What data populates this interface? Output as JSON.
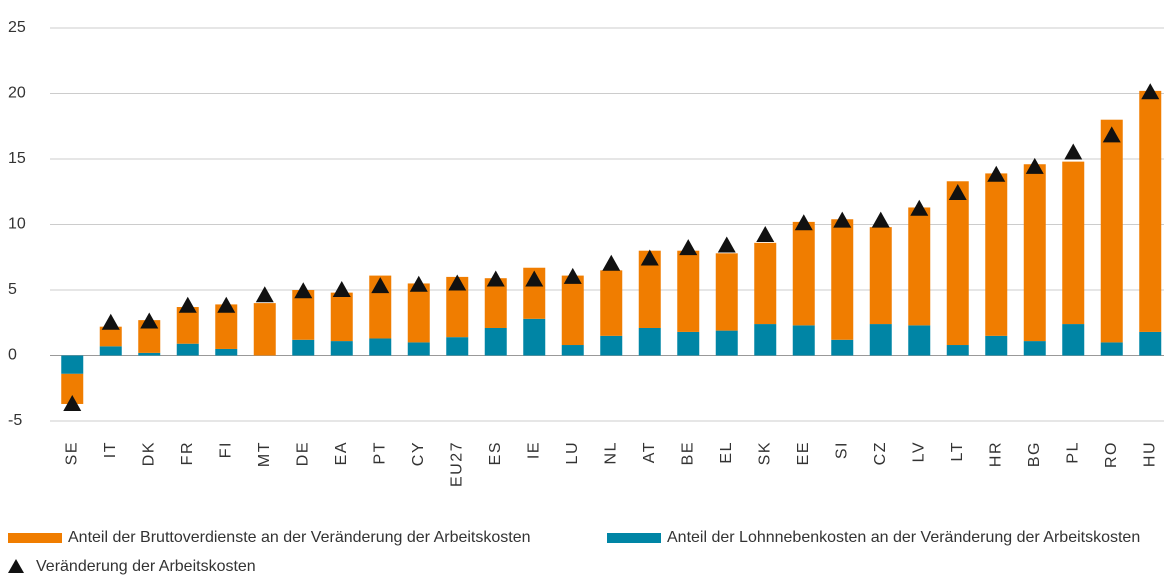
{
  "chart_data": {
    "type": "bar",
    "categories": [
      "SE",
      "IT",
      "DK",
      "FR",
      "FI",
      "MT",
      "DE",
      "EA",
      "PT",
      "CY",
      "EU27",
      "ES",
      "IE",
      "LU",
      "NL",
      "AT",
      "BE",
      "EL",
      "SK",
      "EE",
      "SI",
      "CZ",
      "LV",
      "LT",
      "HR",
      "BG",
      "PL",
      "RO",
      "HU"
    ],
    "series": [
      {
        "name": "Anteil der Bruttoverdienste an der Veränderung der Arbeitskosten",
        "type": "bar",
        "color": "#f07d00",
        "values": [
          -2.3,
          1.5,
          2.5,
          2.8,
          3.4,
          4.0,
          3.8,
          3.7,
          4.8,
          4.5,
          4.6,
          3.8,
          3.9,
          5.3,
          5.0,
          5.9,
          6.2,
          5.9,
          6.2,
          7.9,
          9.2,
          7.4,
          9.0,
          12.5,
          12.4,
          13.5,
          12.4,
          17.0,
          18.4
        ]
      },
      {
        "name": "Anteil der Lohnnebenkosten an der Veränderung der Arbeitskosten",
        "type": "bar",
        "color": "#0085a5",
        "values": [
          -1.4,
          0.7,
          0.2,
          0.9,
          0.5,
          0.0,
          1.2,
          1.1,
          1.3,
          1.0,
          1.4,
          2.1,
          2.8,
          0.8,
          1.5,
          2.1,
          1.8,
          1.9,
          2.4,
          2.3,
          1.2,
          2.4,
          2.3,
          0.8,
          1.5,
          1.1,
          2.4,
          1.0,
          1.8
        ]
      },
      {
        "name": "Veränderung der Arbeitskosten",
        "type": "marker",
        "color": "#111111",
        "values": [
          -3.7,
          2.5,
          2.6,
          3.8,
          3.8,
          4.6,
          4.9,
          5.0,
          5.3,
          5.4,
          5.5,
          5.8,
          5.8,
          6.0,
          7.0,
          7.4,
          8.2,
          8.4,
          9.2,
          10.1,
          10.3,
          10.3,
          11.2,
          12.4,
          13.8,
          14.4,
          15.5,
          16.8,
          20.1
        ]
      }
    ],
    "ylim": [
      -5,
      25
    ],
    "yticks": [
      -5,
      0,
      5,
      10,
      15,
      20,
      25
    ],
    "grid": true
  }
}
